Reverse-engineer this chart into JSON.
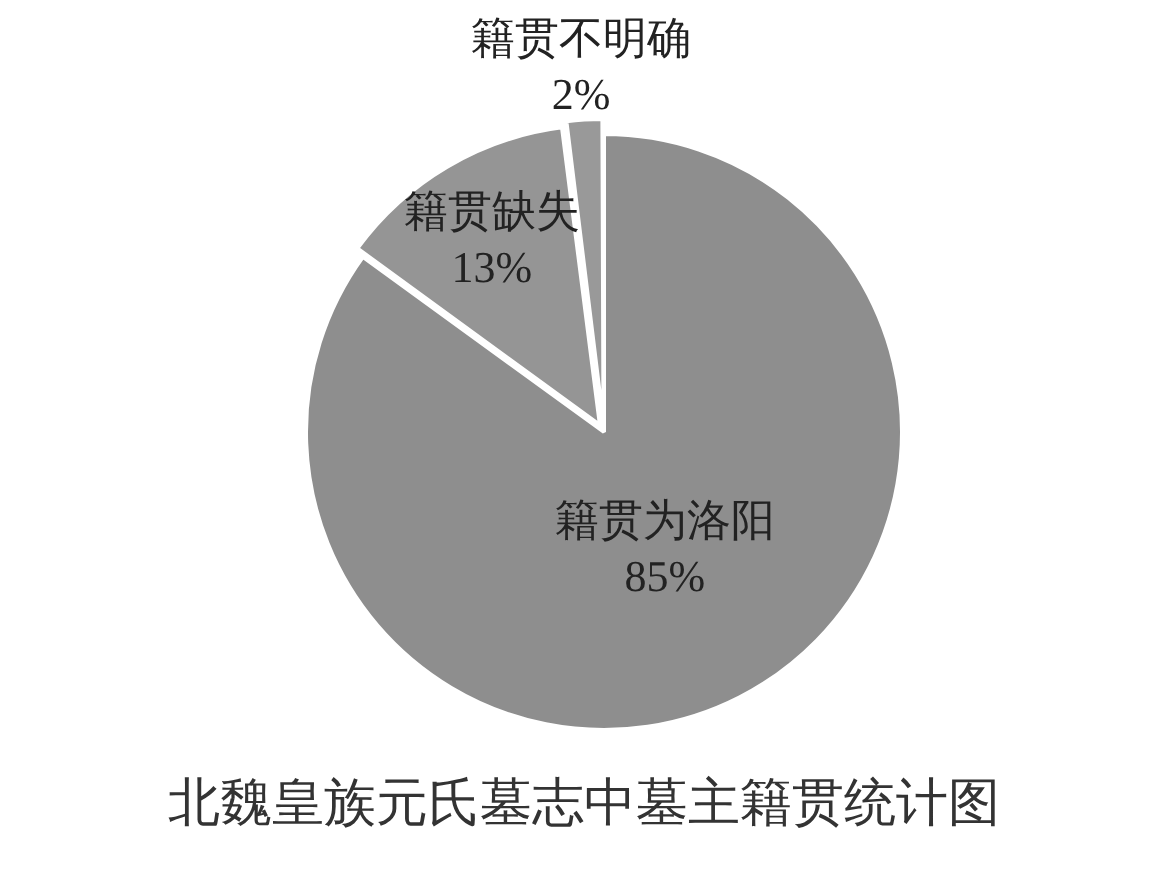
{
  "chart_data": {
    "type": "pie",
    "title": "北魏皇族元氏墓志中墓主籍贯统计图",
    "categories": [
      "籍贯为洛阳",
      "籍贯缺失",
      "籍贯不明确"
    ],
    "values": [
      85,
      13,
      2
    ],
    "colors": [
      "#8e8e8e",
      "#959595",
      "#999999"
    ],
    "value_labels": [
      "85%",
      "13%",
      "2%"
    ],
    "legend": false
  }
}
